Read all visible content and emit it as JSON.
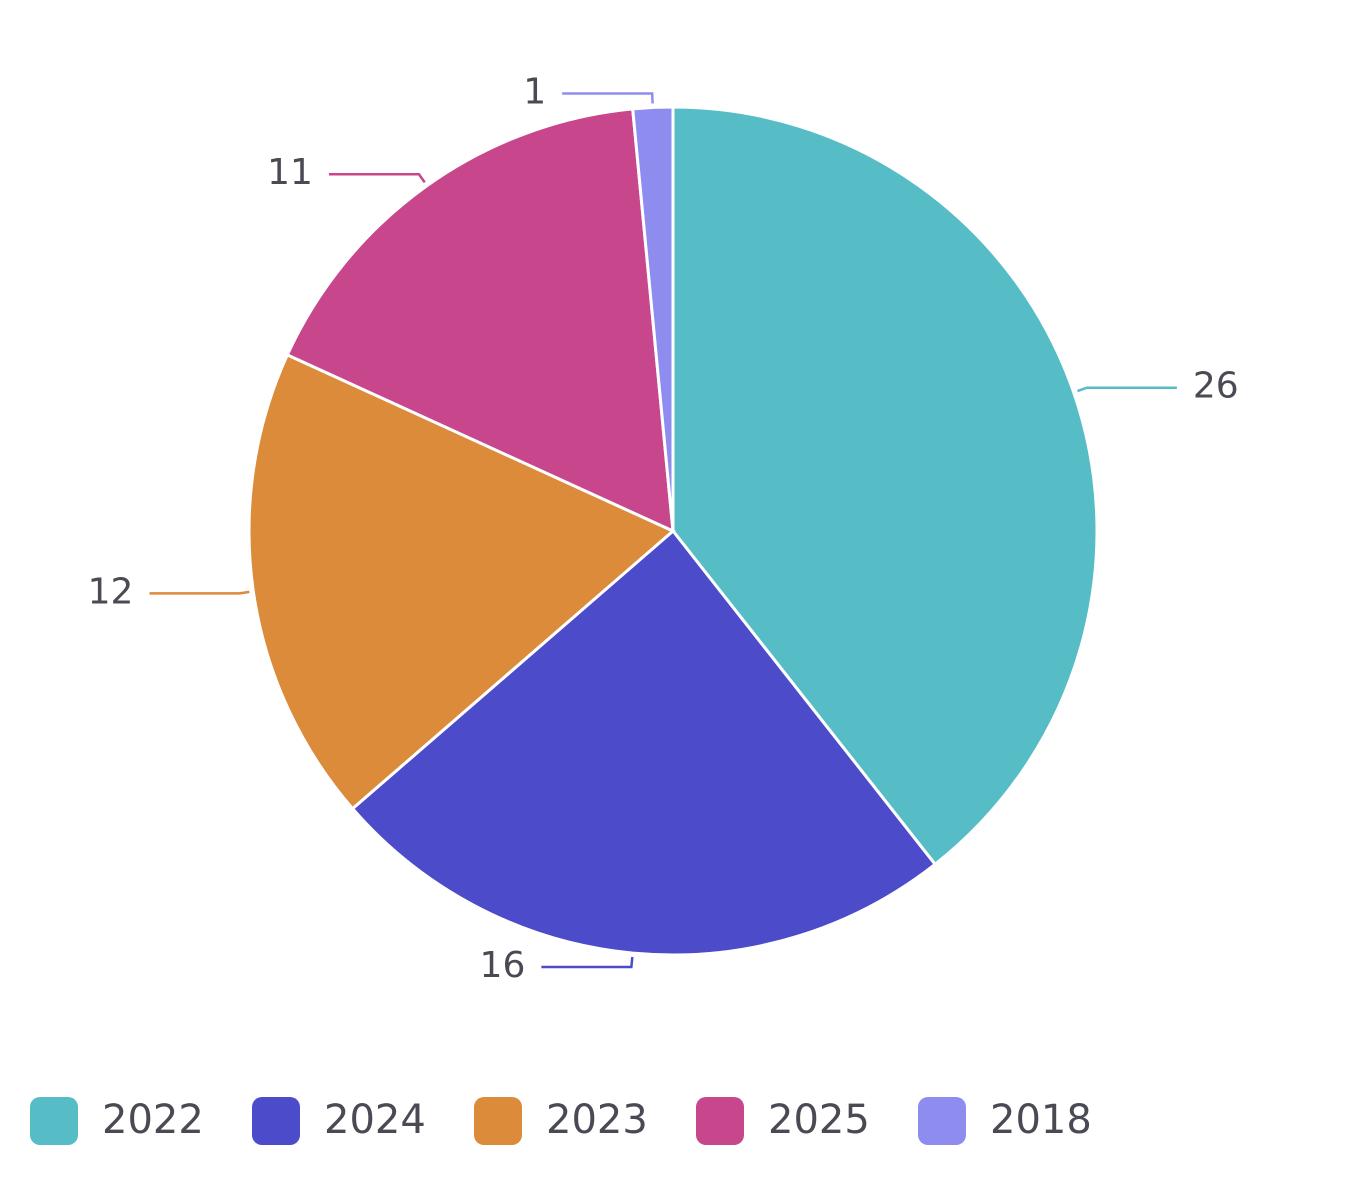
{
  "chart_data": {
    "type": "pie",
    "categories": [
      "2022",
      "2024",
      "2023",
      "2025",
      "2018"
    ],
    "values": [
      26,
      16,
      12,
      11,
      1
    ],
    "colors": [
      "#56bdc7",
      "#4c4bca",
      "#db8b3a",
      "#c8478c",
      "#8f8cf0"
    ],
    "legend": "bottom"
  }
}
